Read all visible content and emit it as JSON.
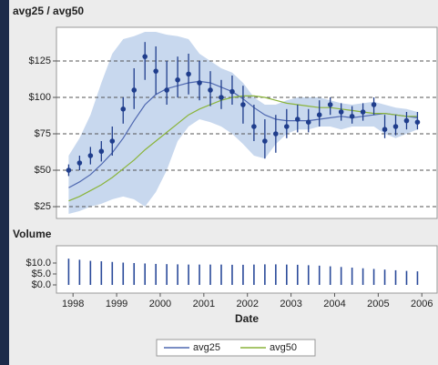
{
  "chart_data": [
    {
      "type": "band-stock",
      "title": "avg25 / avg50",
      "x": [
        1997.9,
        1998.15,
        1998.4,
        1998.65,
        1998.9,
        1999.15,
        1999.4,
        1999.65,
        1999.9,
        2000.15,
        2000.4,
        2000.65,
        2000.9,
        2001.15,
        2001.4,
        2001.65,
        2001.9,
        2002.15,
        2002.4,
        2002.65,
        2002.9,
        2003.15,
        2003.4,
        2003.65,
        2003.9,
        2004.15,
        2004.4,
        2004.65,
        2004.9,
        2005.15,
        2005.4,
        2005.65,
        2005.9
      ],
      "xlim": [
        1997.62,
        2006.35
      ],
      "ylim": [
        16.9,
        148.1
      ],
      "yticks": [
        {
          "value": 25,
          "label": "$25"
        },
        {
          "value": 50,
          "label": "$50"
        },
        {
          "value": 75,
          "label": "$75"
        },
        {
          "value": 100,
          "label": "$100"
        },
        {
          "value": 125,
          "label": "$125"
        }
      ],
      "grid": true,
      "marker_color": "#1f3d8c",
      "close": [
        50,
        55,
        60,
        63,
        70,
        92,
        105,
        128,
        118,
        105,
        112,
        116,
        110,
        105,
        100,
        104,
        95,
        80,
        70,
        75,
        80,
        85,
        83,
        88,
        95,
        90,
        87,
        90,
        95,
        78,
        80,
        84,
        83
      ],
      "high": [
        54,
        60,
        66,
        70,
        80,
        100,
        120,
        138,
        135,
        125,
        128,
        130,
        125,
        118,
        112,
        115,
        108,
        95,
        85,
        88,
        92,
        95,
        92,
        98,
        100,
        96,
        94,
        96,
        100,
        88,
        88,
        90,
        90
      ],
      "low": [
        46,
        50,
        54,
        56,
        60,
        82,
        92,
        112,
        102,
        95,
        100,
        102,
        98,
        94,
        92,
        95,
        82,
        70,
        58,
        62,
        72,
        76,
        76,
        80,
        88,
        84,
        82,
        84,
        88,
        72,
        74,
        78,
        78
      ],
      "band": {
        "color": "#c8d8ee",
        "upper": [
          60,
          72,
          88,
          110,
          130,
          140,
          142,
          145,
          145,
          143,
          142,
          140,
          130,
          125,
          120,
          117,
          110,
          100,
          95,
          95,
          98,
          100,
          100,
          100,
          98,
          96,
          95,
          96,
          97,
          95,
          93,
          92,
          90
        ],
        "lower": [
          20,
          22,
          25,
          27,
          30,
          32,
          30,
          25,
          35,
          50,
          70,
          80,
          85,
          83,
          80,
          75,
          68,
          60,
          58,
          68,
          75,
          78,
          78,
          80,
          80,
          78,
          80,
          80,
          80,
          75,
          72,
          75,
          78
        ]
      },
      "series": [
        {
          "name": "avg25",
          "color": "#4f68b0",
          "values": [
            38,
            42,
            47,
            54,
            62,
            72,
            84,
            95,
            102,
            106,
            108,
            110,
            111,
            110,
            107,
            104,
            99,
            93,
            88,
            85,
            84,
            84,
            84,
            85,
            86,
            87,
            86,
            87,
            88,
            89,
            88,
            87,
            86
          ]
        },
        {
          "name": "avg50",
          "color": "#8ab43a",
          "values": [
            29,
            32,
            36,
            40,
            45,
            51,
            57,
            64,
            70,
            76,
            82,
            88,
            92,
            95,
            98,
            100,
            101,
            101,
            100,
            98,
            96,
            95,
            94,
            93,
            93,
            92,
            91,
            90,
            89,
            89,
            88,
            87,
            87
          ]
        }
      ]
    },
    {
      "type": "bar",
      "title": "Volume",
      "x_label": "Date",
      "x": [
        1997.9,
        1998.15,
        1998.4,
        1998.65,
        1998.9,
        1999.15,
        1999.4,
        1999.65,
        1999.9,
        2000.15,
        2000.4,
        2000.65,
        2000.9,
        2001.15,
        2001.4,
        2001.65,
        2001.9,
        2002.15,
        2002.4,
        2002.65,
        2002.9,
        2003.15,
        2003.4,
        2003.65,
        2003.9,
        2004.15,
        2004.4,
        2004.65,
        2004.9,
        2005.15,
        2005.4,
        2005.65,
        2005.9
      ],
      "xlim": [
        1997.62,
        2006.35
      ],
      "xticks": [
        1998,
        1999,
        2000,
        2001,
        2002,
        2003,
        2004,
        2005,
        2006
      ],
      "ylim": [
        -3.75,
        17.9
      ],
      "yticks": [
        {
          "value": 0,
          "label": "$0.0"
        },
        {
          "value": 5,
          "label": "$5.0"
        },
        {
          "value": 10,
          "label": "$10.0"
        }
      ],
      "color": "#2a4a9a",
      "values": [
        12,
        11.5,
        11,
        10.8,
        10.5,
        10.2,
        10,
        9.8,
        9.6,
        9.5,
        9.4,
        9.3,
        9.3,
        9.3,
        9.3,
        9.2,
        9.2,
        9.3,
        9.4,
        9.4,
        9.3,
        9.2,
        9,
        8.8,
        8.5,
        8.2,
        7.9,
        7.6,
        7.3,
        7,
        6.7,
        6.4,
        6.2
      ]
    }
  ]
}
